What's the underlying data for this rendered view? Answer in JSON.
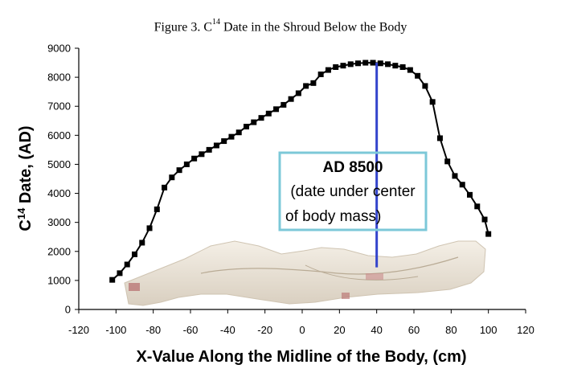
{
  "figure": {
    "title_prefix": "Figure 3. C",
    "title_superscript": "14",
    "title_suffix": " Date in the Shroud Below the Body"
  },
  "chart_data": {
    "type": "line",
    "title": "Figure 3. C14 Date in the Shroud Below the Body",
    "xlabel": "X-Value Along the Midline of the Body, (cm)",
    "ylabel_prefix": "C",
    "ylabel_superscript": "14",
    "ylabel_suffix": " Date, (AD)",
    "xlim": [
      -120,
      120
    ],
    "ylim": [
      0,
      9000
    ],
    "xticks": [
      -120,
      -100,
      -80,
      -60,
      -40,
      -20,
      0,
      20,
      40,
      60,
      80,
      100,
      120
    ],
    "yticks": [
      0,
      1000,
      2000,
      3000,
      4000,
      5000,
      6000,
      7000,
      8000,
      9000
    ],
    "grid": false,
    "series": [
      {
        "color": "#000000",
        "marker": "square",
        "x": [
          -102,
          -98,
          -94,
          -90,
          -86,
          -82,
          -78,
          -74,
          -70,
          -66,
          -62,
          -58,
          -54,
          -50,
          -46,
          -42,
          -38,
          -34,
          -30,
          -26,
          -22,
          -18,
          -14,
          -10,
          -6,
          -2,
          2,
          6,
          10,
          14,
          18,
          22,
          26,
          30,
          34,
          38,
          42,
          46,
          50,
          54,
          58,
          62,
          66,
          70,
          74,
          78,
          82,
          86,
          90,
          94,
          98,
          100
        ],
        "y": [
          1020,
          1250,
          1550,
          1900,
          2300,
          2800,
          3450,
          4200,
          4550,
          4800,
          5000,
          5200,
          5350,
          5500,
          5650,
          5800,
          5950,
          6100,
          6300,
          6450,
          6600,
          6750,
          6900,
          7050,
          7250,
          7450,
          7700,
          7800,
          8100,
          8250,
          8350,
          8400,
          8450,
          8480,
          8500,
          8500,
          8480,
          8450,
          8400,
          8350,
          8250,
          8050,
          7700,
          7150,
          5900,
          5100,
          4600,
          4300,
          3950,
          3550,
          3100,
          2600
        ]
      }
    ],
    "reference_line": {
      "x": 40,
      "color": "#3344cc"
    },
    "annotation": {
      "lines": [
        "AD 8500",
        "(date under center",
        "of body mass)"
      ],
      "border_color": "#7cc8d8"
    }
  }
}
